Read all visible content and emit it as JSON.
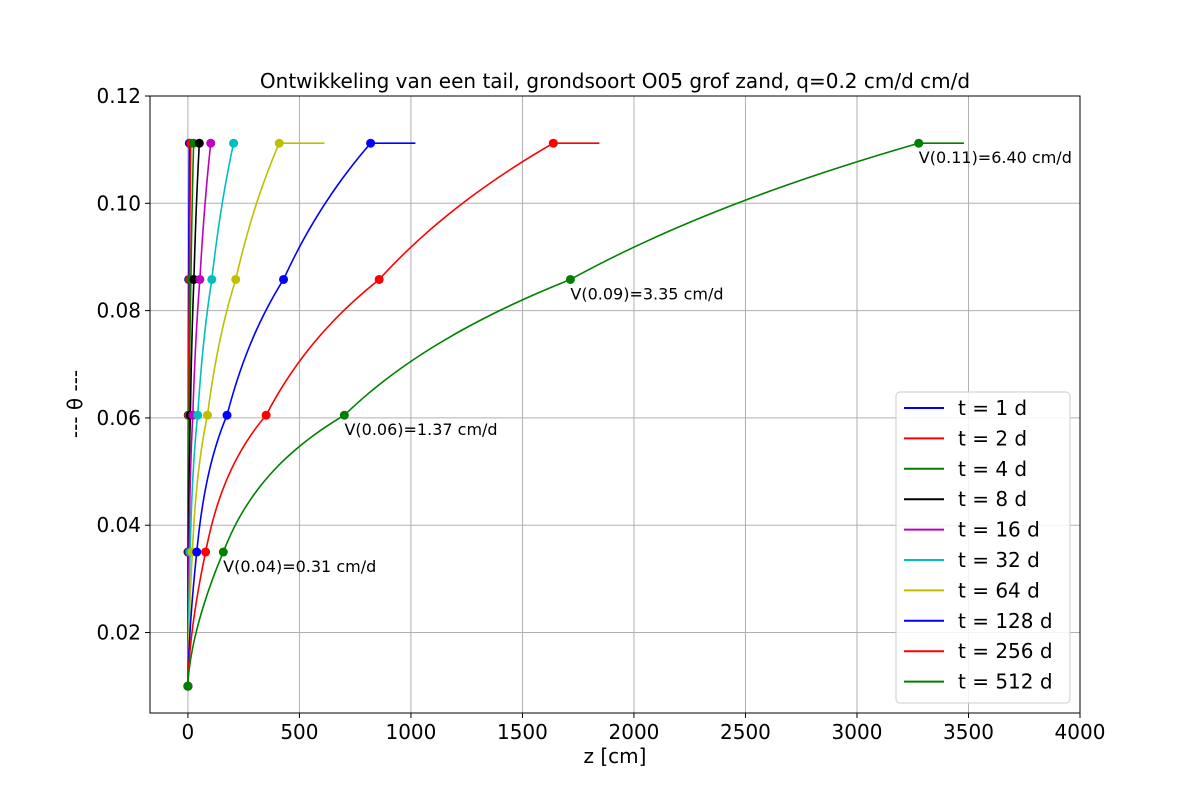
{
  "chart_data": {
    "type": "line",
    "title": "Ontwikkeling van een tail, grondsoort O05 grof zand, q=0.2 cm/d cm/d",
    "xlabel": "z [cm]",
    "ylabel": "--- θ ---",
    "xlim": [
      -170,
      4000
    ],
    "ylim": [
      0.005,
      0.12
    ],
    "xticks": [
      0,
      500,
      1000,
      1500,
      2000,
      2500,
      3000,
      3500,
      4000
    ],
    "yticks": [
      0.02,
      0.04,
      0.06,
      0.08,
      0.1,
      0.12
    ],
    "ytick_labels": [
      "0.02",
      "0.04",
      "0.06",
      "0.08",
      "0.10",
      "0.12"
    ],
    "grid": true,
    "legend_position": "lower-right",
    "theta_markers": [
      0.01,
      0.035,
      0.0605,
      0.0858,
      0.1112
    ],
    "velocities": [
      {
        "theta": 0.0,
        "v": 0.0
      },
      {
        "theta": 0.035,
        "v": 0.31
      },
      {
        "theta": 0.0605,
        "v": 1.37
      },
      {
        "theta": 0.0858,
        "v": 3.35
      },
      {
        "theta": 0.1112,
        "v": 6.4
      }
    ],
    "theta_top": 0.1112,
    "annotations": [
      {
        "text": "V(0.04)=0.31 cm/d",
        "x": 158,
        "y": 0.035
      },
      {
        "text": "V(0.06)=1.37 cm/d",
        "x": 702,
        "y": 0.0605
      },
      {
        "text": "V(0.09)=3.35 cm/d",
        "x": 1715,
        "y": 0.0858
      },
      {
        "text": "V(0.11)=6.40 cm/d",
        "x": 3277,
        "y": 0.1112
      }
    ],
    "series": [
      {
        "name": "t = 1 d",
        "t": 1,
        "color": "#0000ff",
        "z_end": 7
      },
      {
        "name": "t = 2 d",
        "t": 2,
        "color": "#ff0000",
        "z_end": 14
      },
      {
        "name": "t = 4 d",
        "t": 4,
        "color": "#008000",
        "z_end": 28
      },
      {
        "name": "t = 8 d",
        "t": 8,
        "color": "#000000",
        "z_end": 56
      },
      {
        "name": "t = 16 d",
        "t": 16,
        "color": "#bf00bf",
        "z_end": 112
      },
      {
        "name": "t = 32 d",
        "t": 32,
        "color": "#00bfbf",
        "z_end": 224
      },
      {
        "name": "t = 64 d",
        "t": 64,
        "color": "#bfbf00",
        "z_end": 612
      },
      {
        "name": "t = 128 d",
        "t": 128,
        "color": "#0000ff",
        "z_end": 1020
      },
      {
        "name": "t = 256 d",
        "t": 256,
        "color": "#ff0000",
        "z_end": 1845
      },
      {
        "name": "t = 512 d",
        "t": 512,
        "color": "#008000",
        "z_end": 3480
      }
    ]
  }
}
